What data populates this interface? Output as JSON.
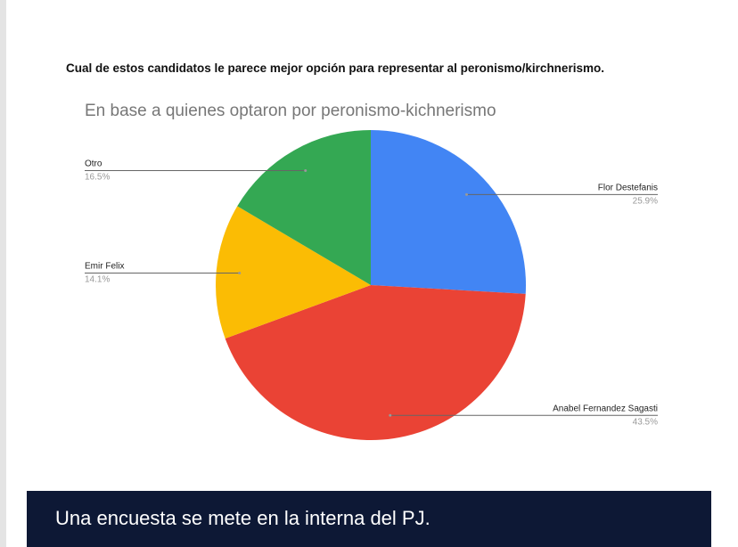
{
  "chart_data": {
    "type": "pie",
    "title": "Cual de estos candidatos le parece mejor opción para representar al peronismo/kirchnerismo.",
    "subtitle": "En base a quienes optaron por peronismo-kichnerismo",
    "categories": [
      "Flor Destefanis",
      "Anabel Fernandez Sagasti",
      "Emir Felix",
      "Otro"
    ],
    "values": [
      25.9,
      43.5,
      14.1,
      16.5
    ],
    "value_labels": [
      "25.9%",
      "43.5%",
      "14.1%",
      "16.5%"
    ],
    "colors": [
      "#4285f4",
      "#ea4335",
      "#fbbc04",
      "#34a853"
    ]
  },
  "caption": "Una encuesta se mete en la interna del PJ."
}
